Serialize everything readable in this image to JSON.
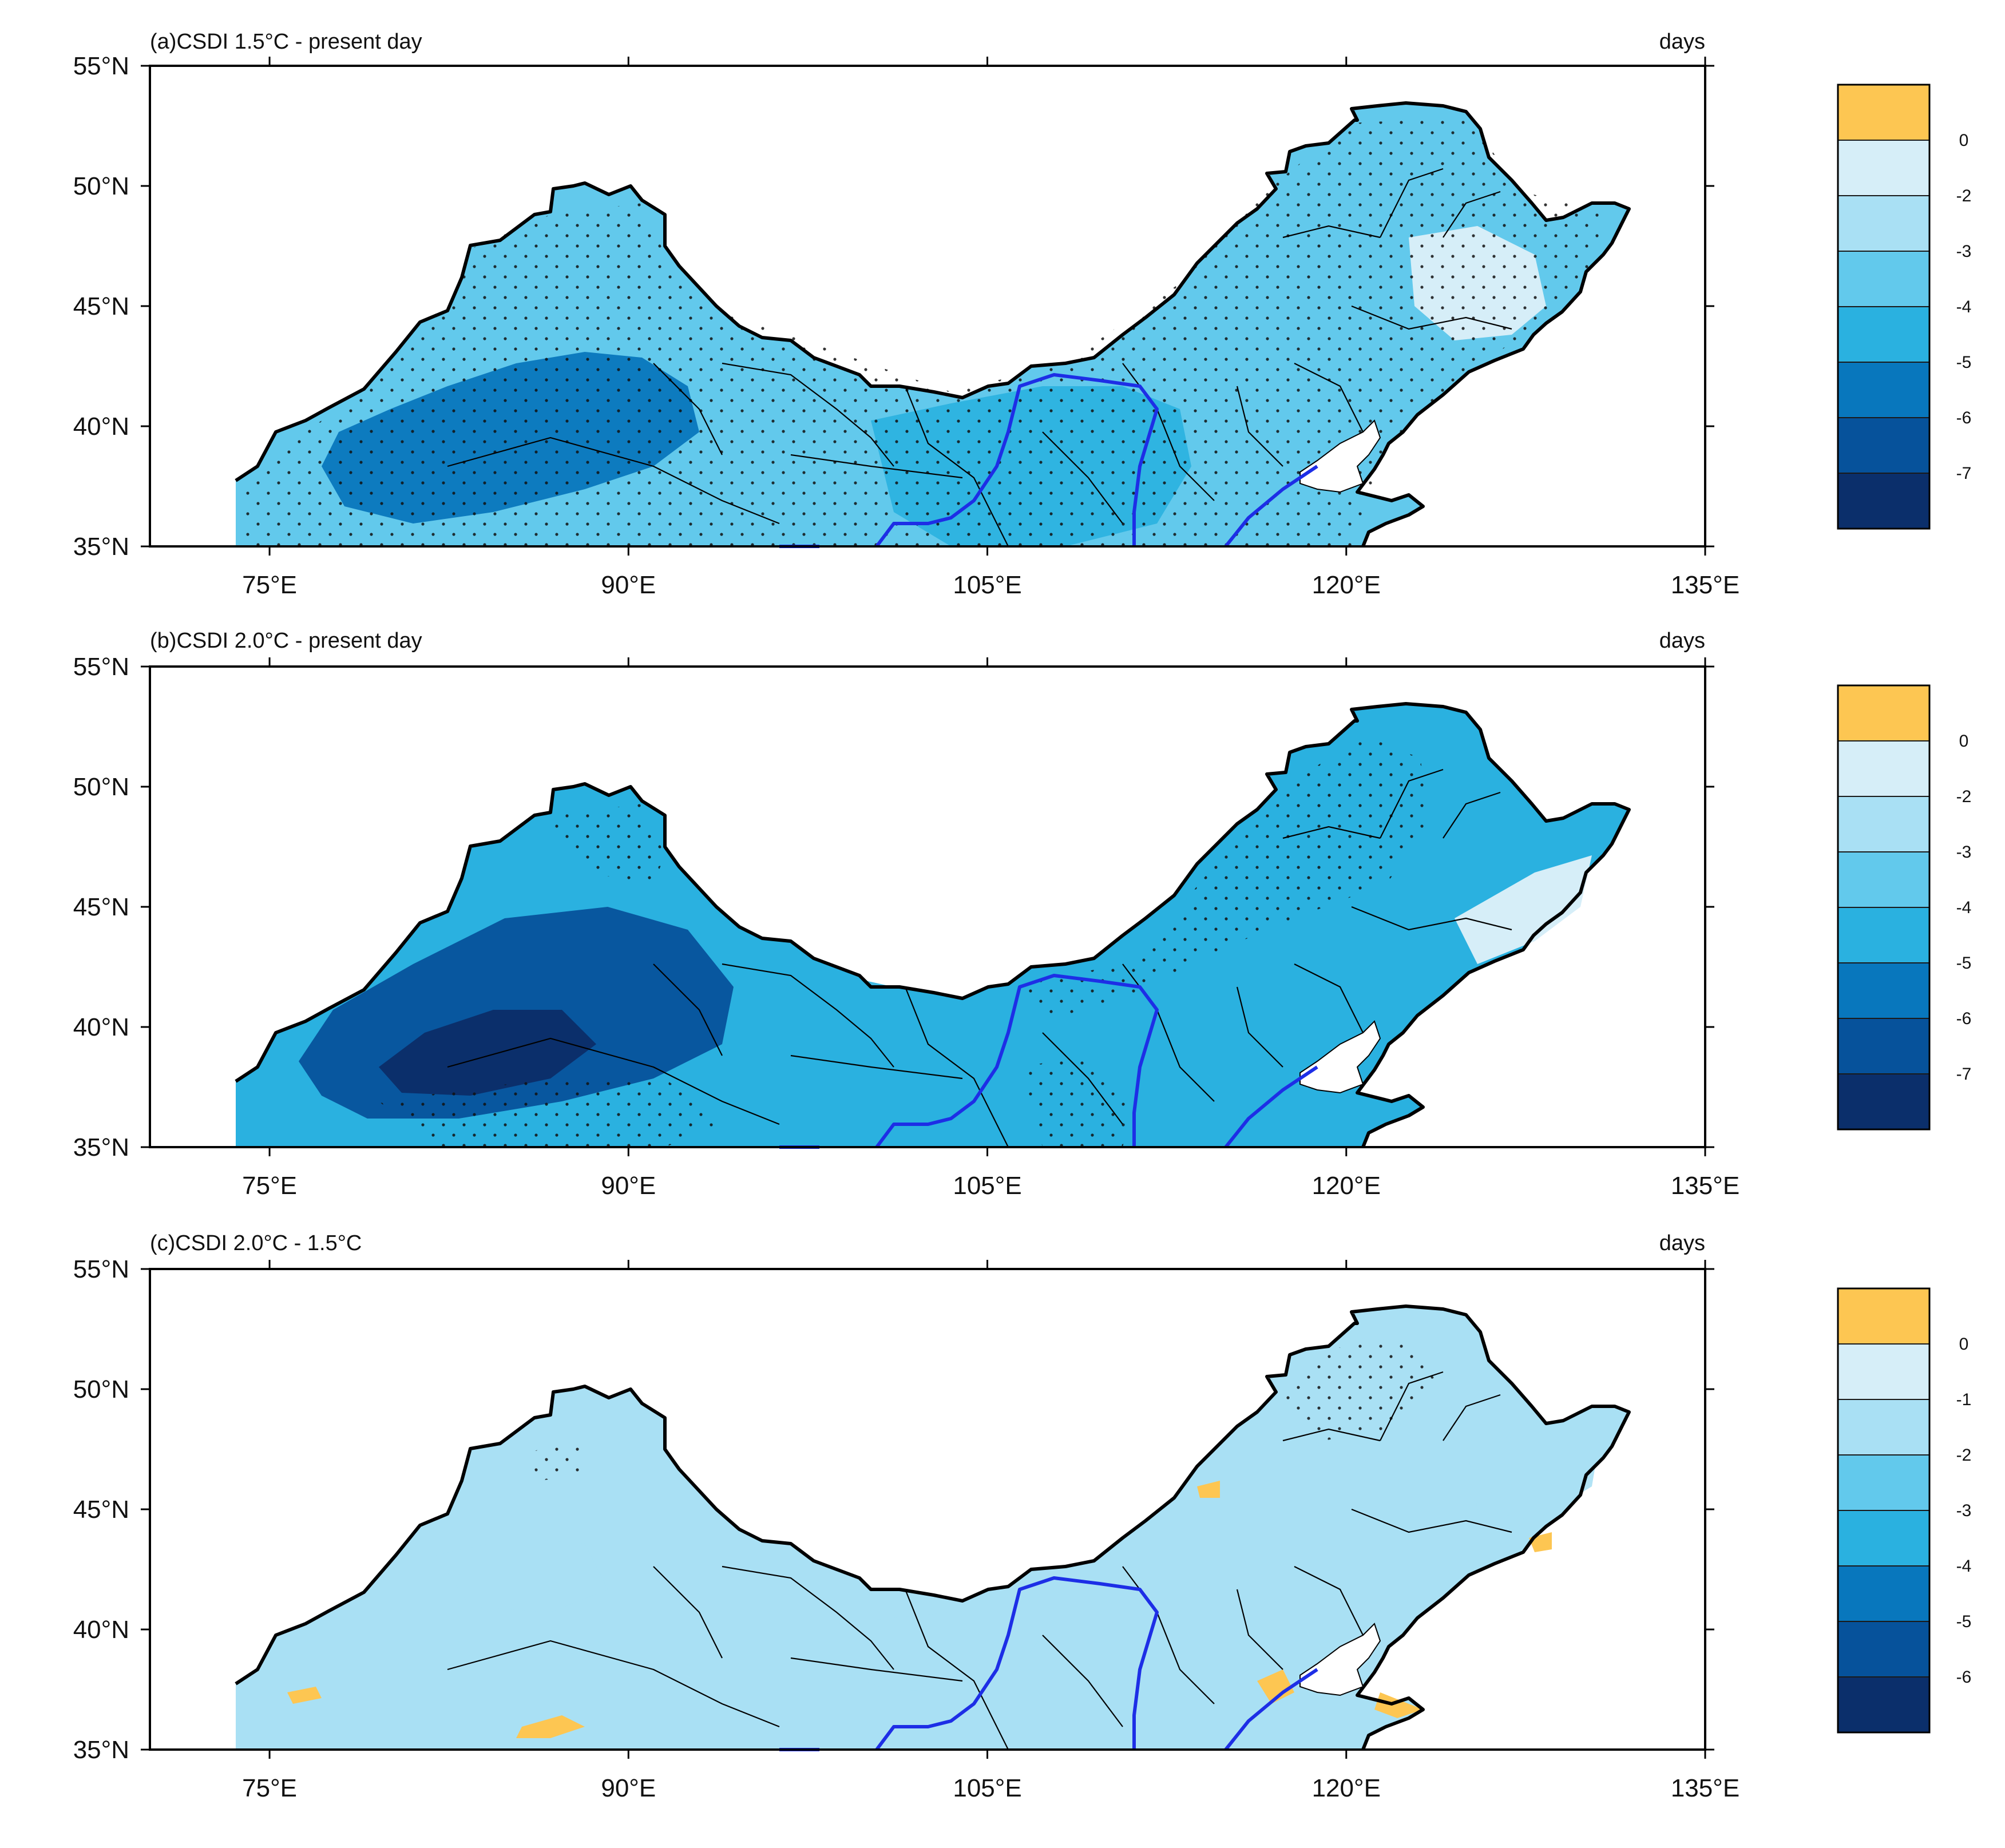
{
  "colors": {
    "ocean": "#ffffff",
    "positive": "#fdc652",
    "lightest": "#d6eef8",
    "c2": "#a9e0f4",
    "c3": "#62c9ec",
    "c4": "#2ab1e0",
    "c5": "#0877bd",
    "c6": "#06529b",
    "c7": "#0b2f6b",
    "river": "#1d2ee6",
    "border": "#000000"
  },
  "axes": {
    "lon_ticks": [
      "75°E",
      "90°E",
      "105°E",
      "120°E",
      "135°E"
    ],
    "lat_ticks": [
      "55°N",
      "50°N",
      "45°N",
      "40°N",
      "35°N"
    ]
  },
  "panels": [
    {
      "id": "a",
      "title": "(a)CSDI 1.5°C - present day",
      "units": "days",
      "colorbar": {
        "labels": [
          "0",
          "-2",
          "-3",
          "-4",
          "-5",
          "-6",
          "-7"
        ]
      },
      "fill_level": 2
    },
    {
      "id": "b",
      "title": "(b)CSDI 2.0°C - present day",
      "units": "days",
      "colorbar": {
        "labels": [
          "0",
          "-2",
          "-3",
          "-4",
          "-5",
          "-6",
          "-7"
        ]
      },
      "fill_level": 3
    },
    {
      "id": "c",
      "title": "(c)CSDI 2.0°C - 1.5°C",
      "units": "days",
      "colorbar": {
        "labels": [
          "0",
          "-1",
          "-2",
          "-3",
          "-4",
          "-5",
          "-6"
        ]
      },
      "fill_level": 1
    }
  ]
}
